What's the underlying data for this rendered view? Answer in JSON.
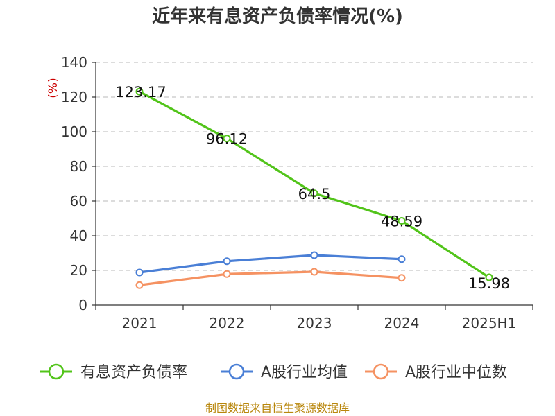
{
  "chart_data": {
    "type": "line",
    "title": "近年来有息资产负债率情况(%)",
    "ylabel": "(%)",
    "xlabel": "",
    "categories": [
      "2021",
      "2022",
      "2023",
      "2024",
      "2025H1"
    ],
    "ylim": [
      0,
      140
    ],
    "yticks": [
      0,
      20,
      40,
      60,
      80,
      100,
      120,
      140
    ],
    "grid": true,
    "legend_position": "bottom",
    "series": [
      {
        "name": "有息资产负债率",
        "color": "#52c41a",
        "values": [
          123.17,
          96.12,
          64.5,
          48.59,
          15.98
        ],
        "labels": [
          "123.17",
          "96.12",
          "64.5",
          "48.59",
          "15.98"
        ]
      },
      {
        "name": "A股行业均值",
        "color": "#4a7fd6",
        "values": [
          18.8,
          25.3,
          28.8,
          26.5,
          null
        ],
        "labels": []
      },
      {
        "name": "A股行业中位数",
        "color": "#f59262",
        "values": [
          11.5,
          17.9,
          19.2,
          15.7,
          null
        ],
        "labels": []
      }
    ]
  },
  "source_text": "制图数据来自恒生聚源数据库"
}
